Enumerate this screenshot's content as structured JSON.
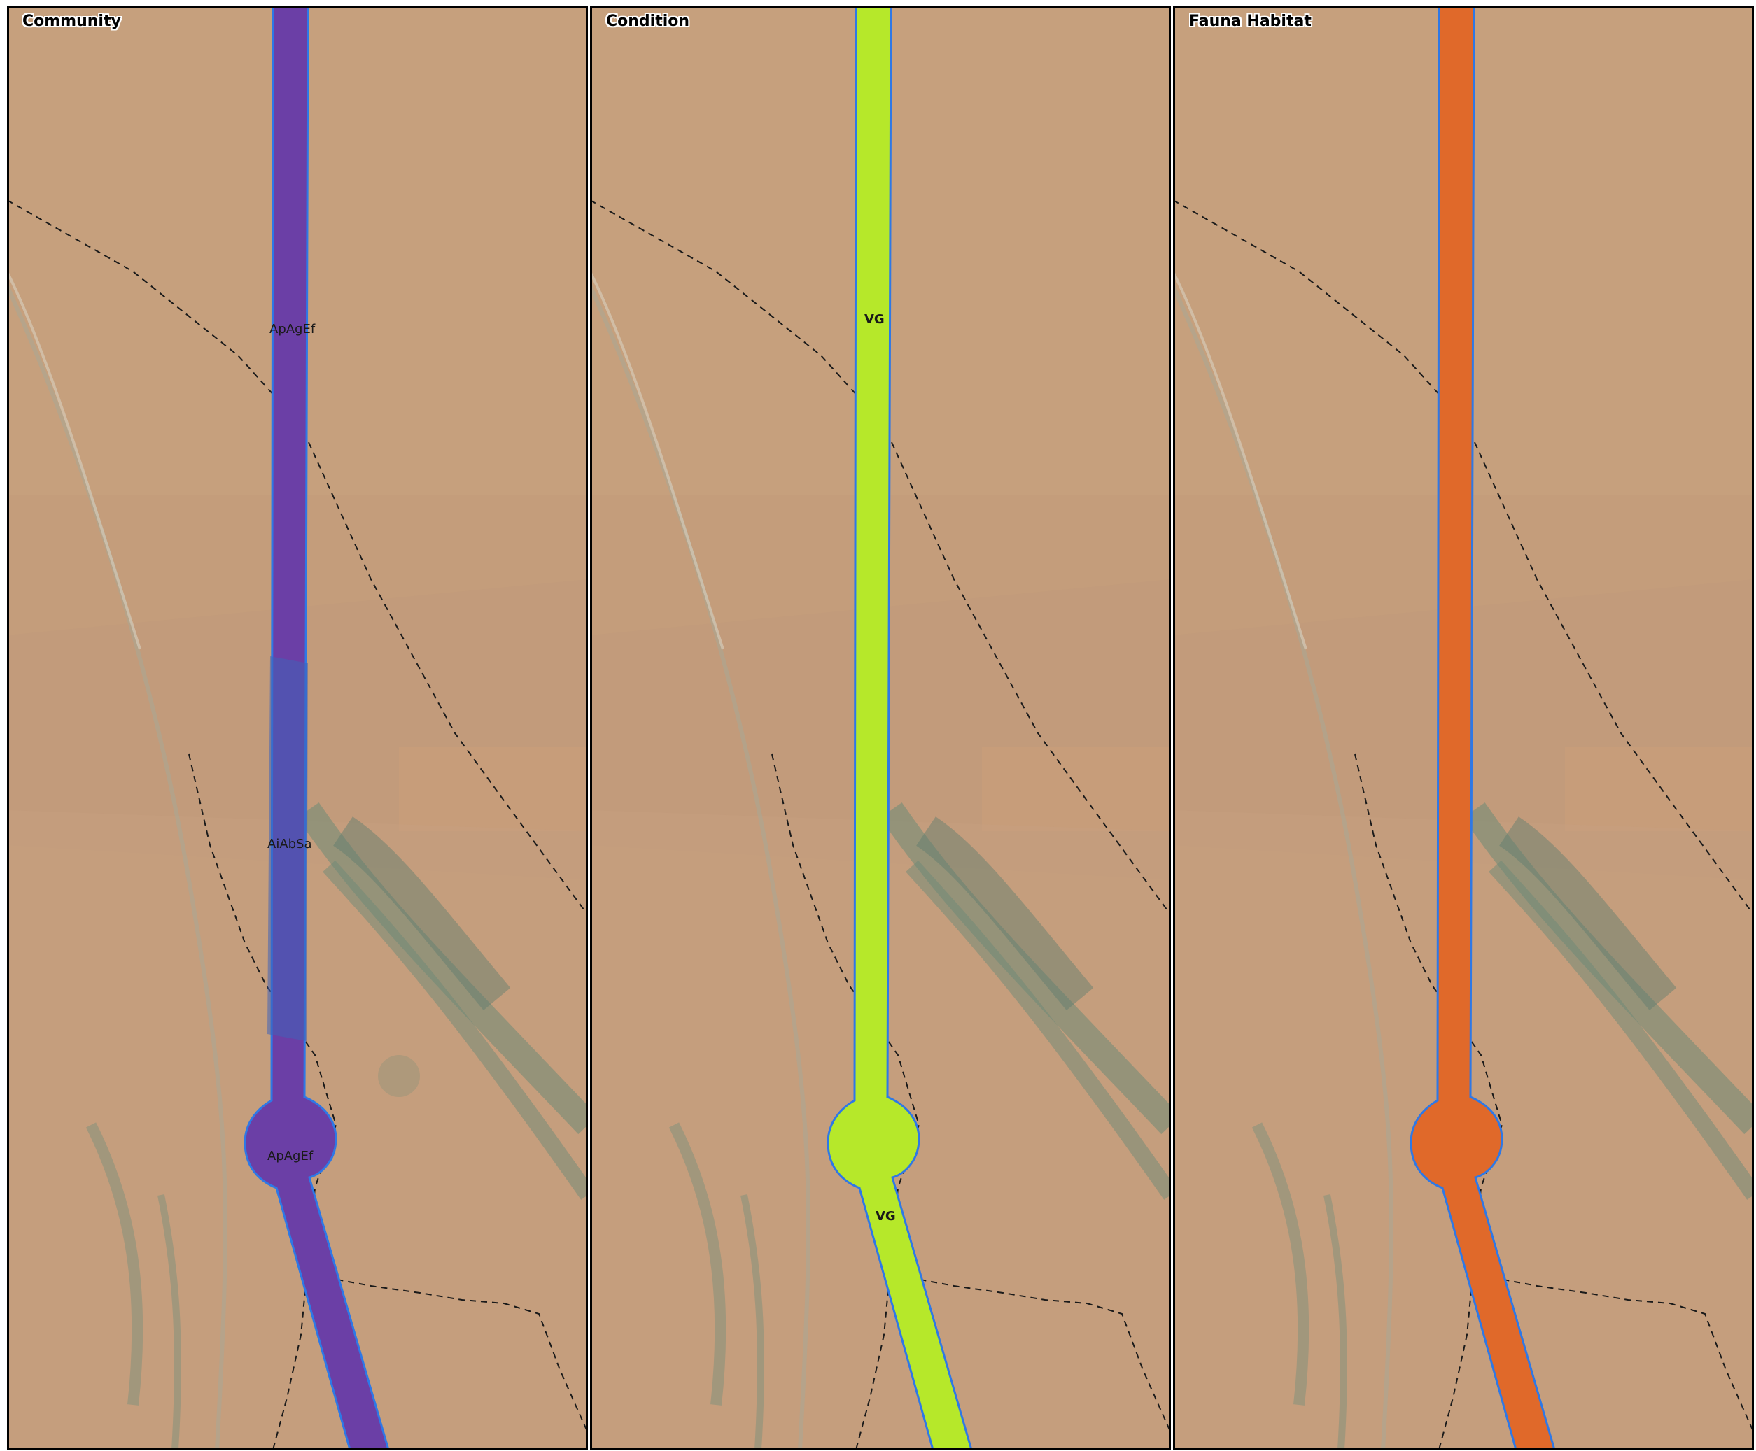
{
  "panels": [
    {
      "title": "Community",
      "fill": "#6b3fa6",
      "labels": [
        "ApAgEf",
        "AiAbSa",
        "ApAgEf"
      ]
    },
    {
      "title": "Condition",
      "fill": "#b6e82a",
      "labels": [
        "VG",
        "VG"
      ]
    },
    {
      "title": "Fauna Habitat",
      "fill": "#e0692a",
      "labels": []
    }
  ],
  "colors": {
    "outline": "#2e78e6",
    "overlap_highlight": "#3f63b8",
    "terrain_base": "#c49d7b",
    "vegetation": "#6d8a77",
    "boundary": "#1a1a1a",
    "frame": "#000000"
  }
}
